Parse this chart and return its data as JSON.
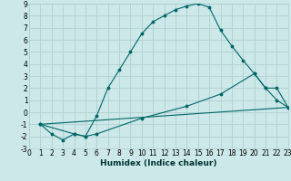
{
  "title": "",
  "xlabel": "Humidex (Indice chaleur)",
  "bg_color": "#cce8e8",
  "grid_color": "#b0d0d0",
  "line_color": "#006666",
  "xlim": [
    0,
    23
  ],
  "ylim": [
    -3,
    9
  ],
  "xticks": [
    0,
    1,
    2,
    3,
    4,
    5,
    6,
    7,
    8,
    9,
    10,
    11,
    12,
    13,
    14,
    15,
    16,
    17,
    18,
    19,
    20,
    21,
    22,
    23
  ],
  "yticks": [
    -3,
    -2,
    -1,
    0,
    1,
    2,
    3,
    4,
    5,
    6,
    7,
    8,
    9
  ],
  "curve1_x": [
    1,
    2,
    3,
    4,
    5,
    6,
    7,
    8,
    9,
    10,
    11,
    12,
    13,
    14,
    15,
    16,
    17,
    18,
    19,
    20,
    21,
    22,
    23
  ],
  "curve1_y": [
    -1.0,
    -1.8,
    -2.3,
    -1.8,
    -2.0,
    -0.3,
    2.0,
    3.5,
    5.0,
    6.5,
    7.5,
    8.0,
    8.5,
    8.8,
    9.0,
    8.7,
    6.8,
    5.5,
    4.3,
    3.2,
    2.0,
    1.0,
    0.4
  ],
  "curve2_x": [
    1,
    4,
    5,
    6,
    10,
    14,
    17,
    20,
    21,
    22,
    23
  ],
  "curve2_y": [
    -1.0,
    -1.8,
    -2.0,
    -1.8,
    -0.5,
    0.5,
    1.5,
    3.2,
    2.0,
    2.0,
    0.4
  ],
  "curve3_x": [
    1,
    23
  ],
  "curve3_y": [
    -1.0,
    0.4
  ],
  "tick_fontsize": 5.5,
  "xlabel_fontsize": 6.5
}
